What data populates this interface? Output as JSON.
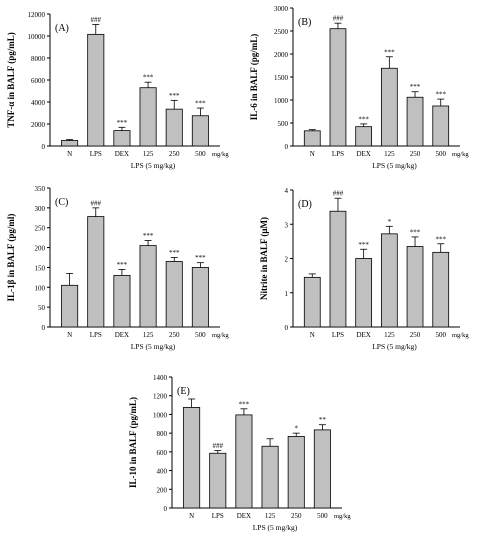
{
  "chart_data": [
    {
      "type": "bar",
      "panel": "(A)",
      "ylabel": "TNF-α in BALF (pg/mL)",
      "xlabel": "LPS (5 mg/kg)",
      "unit_label": "mg/kg",
      "categories": [
        "N",
        "LPS",
        "DEX",
        "125",
        "250",
        "500"
      ],
      "values": [
        500,
        10150,
        1400,
        5300,
        3350,
        2750
      ],
      "errors": [
        80,
        900,
        300,
        500,
        800,
        700
      ],
      "annotations": [
        "",
        "###",
        "***",
        "***",
        "***",
        "***"
      ],
      "ylim": [
        0,
        12000
      ],
      "yticks": [
        "0",
        "2000",
        "4000",
        "6000",
        "8000",
        "10000",
        "12000"
      ],
      "ytick_values": [
        0,
        2000,
        4000,
        6000,
        8000,
        10000,
        12000
      ],
      "bar_color": "#c0c0c0",
      "grid": false
    },
    {
      "type": "bar",
      "panel": "(B)",
      "ylabel": "IL-6 in BALF (pg/mL)",
      "xlabel": "LPS (5 mg/kg)",
      "unit_label": "mg/kg",
      "categories": [
        "N",
        "LPS",
        "DEX",
        "125",
        "250",
        "500"
      ],
      "values": [
        330,
        2550,
        420,
        1690,
        1060,
        870
      ],
      "errors": [
        25,
        120,
        60,
        250,
        120,
        150
      ],
      "annotations": [
        "",
        "###",
        "***",
        "***",
        "***",
        "***"
      ],
      "ylim": [
        0,
        3000
      ],
      "yticks": [
        "0",
        "500",
        "1000",
        "1500",
        "2000",
        "2500",
        "3000"
      ],
      "ytick_values": [
        0,
        500,
        1000,
        1500,
        2000,
        2500,
        3000
      ],
      "bar_color": "#c0c0c0",
      "grid": false
    },
    {
      "type": "bar",
      "panel": "(C)",
      "ylabel": "IL-1β in BALF (pg/ml)",
      "xlabel": "LPS (5 mg/kg)",
      "unit_label": "mg/kg",
      "categories": [
        "N",
        "LPS",
        "DEX",
        "125",
        "250",
        "500"
      ],
      "values": [
        105,
        278,
        130,
        205,
        165,
        150
      ],
      "errors": [
        30,
        22,
        15,
        13,
        10,
        12
      ],
      "annotations": [
        "",
        "###",
        "***",
        "***",
        "***",
        "***"
      ],
      "ylim": [
        0,
        350
      ],
      "yticks": [
        "0",
        "50",
        "100",
        "150",
        "200",
        "250",
        "300",
        "350"
      ],
      "ytick_values": [
        0,
        50,
        100,
        150,
        200,
        250,
        300,
        350
      ],
      "bar_color": "#c0c0c0",
      "grid": false
    },
    {
      "type": "bar",
      "panel": "(D)",
      "ylabel": "Nitrite in BALF (μM)",
      "xlabel": "LPS (5 mg/kg)",
      "unit_label": "mg/kg",
      "categories": [
        "N",
        "LPS",
        "DEX",
        "125",
        "250",
        "500"
      ],
      "values": [
        1.45,
        3.38,
        2.0,
        2.72,
        2.35,
        2.18
      ],
      "errors": [
        0.1,
        0.38,
        0.27,
        0.22,
        0.28,
        0.25
      ],
      "annotations": [
        "",
        "###",
        "***",
        "*",
        "***",
        "***"
      ],
      "ylim": [
        0,
        4
      ],
      "yticks": [
        "0",
        "1",
        "2",
        "3",
        "4"
      ],
      "ytick_values": [
        0,
        1,
        2,
        3,
        4
      ],
      "bar_color": "#c0c0c0",
      "grid": false
    },
    {
      "type": "bar",
      "panel": "(E)",
      "ylabel": "IL-10 in BALF (pg/mL)",
      "xlabel": "LPS (5 mg/kg)",
      "unit_label": "mg/kg",
      "categories": [
        "N",
        "LPS",
        "DEX",
        "125",
        "250",
        "500"
      ],
      "values": [
        1075,
        585,
        995,
        660,
        765,
        835
      ],
      "errors": [
        90,
        30,
        65,
        80,
        35,
        55
      ],
      "annotations": [
        "",
        "###",
        "***",
        "",
        "*",
        "**"
      ],
      "ylim": [
        0,
        1400
      ],
      "yticks": [
        "0",
        "200",
        "400",
        "600",
        "800",
        "1000",
        "1200",
        "1400"
      ],
      "ytick_values": [
        0,
        200,
        400,
        600,
        800,
        1000,
        1200,
        1400
      ],
      "bar_color": "#c0c0c0",
      "grid": false
    }
  ]
}
